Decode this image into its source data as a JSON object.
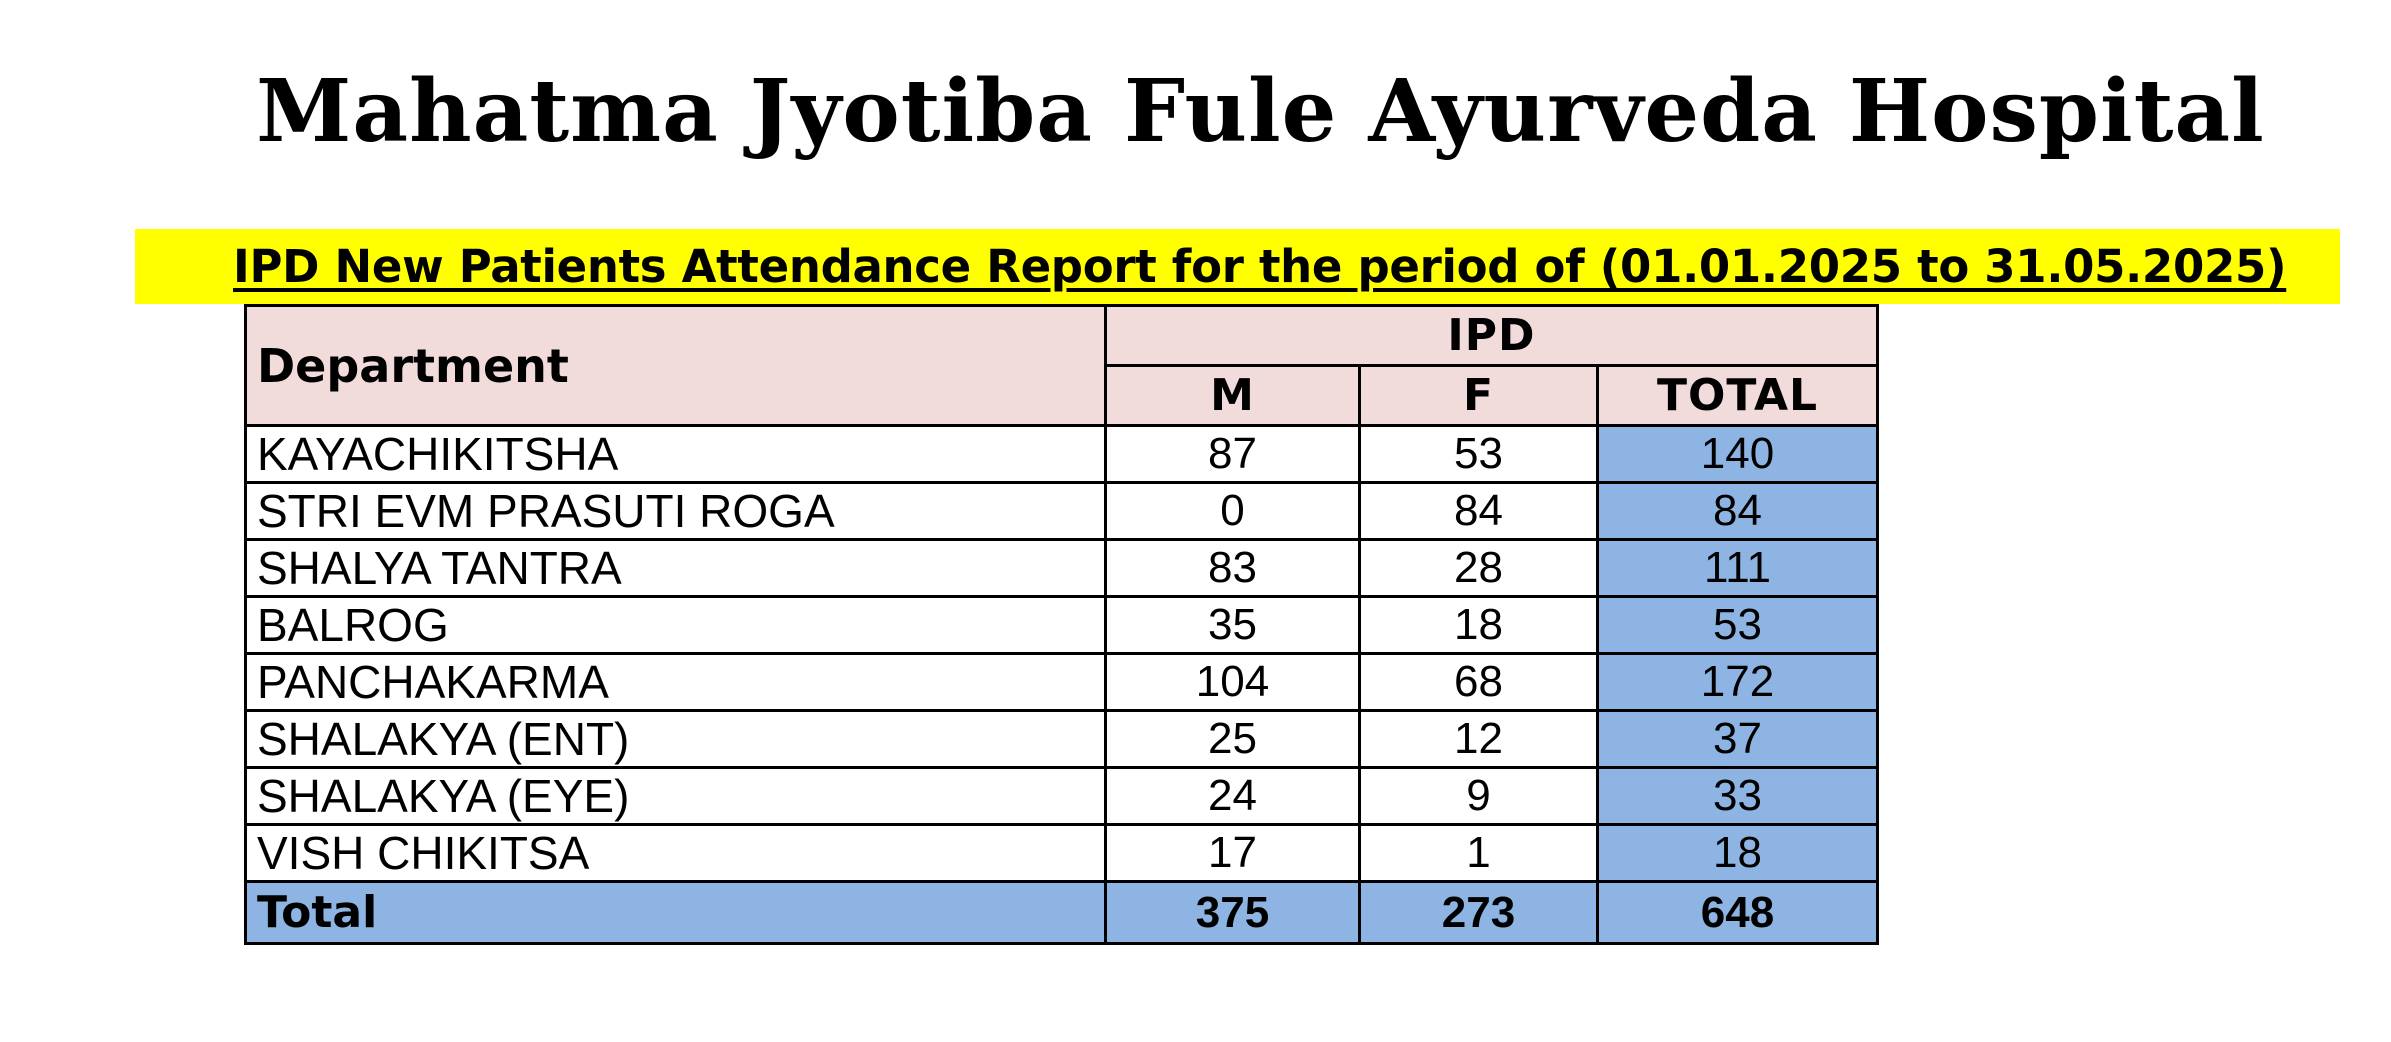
{
  "title": "Mahatma Jyotiba Fule Ayurveda Hospital",
  "subtitle": "IPD New Patients Attendance Report for the period of  (01.01.2025 to 31.05.2025)",
  "table": {
    "department_header": "Department",
    "group_header": "IPD",
    "columns": [
      "M",
      "F",
      "TOTAL"
    ],
    "rows": [
      {
        "department": "KAYACHIKITSHA",
        "m": "87",
        "f": "53",
        "total": "140"
      },
      {
        "department": "STRI EVM PRASUTI ROGA",
        "m": "0",
        "f": "84",
        "total": "84"
      },
      {
        "department": "SHALYA TANTRA",
        "m": "83",
        "f": "28",
        "total": "111"
      },
      {
        "department": "BALROG",
        "m": "35",
        "f": "18",
        "total": "53"
      },
      {
        "department": "PANCHAKARMA",
        "m": "104",
        "f": "68",
        "total": "172"
      },
      {
        "department": "SHALAKYA (ENT)",
        "m": "25",
        "f": "12",
        "total": "37"
      },
      {
        "department": "SHALAKYA (EYE)",
        "m": "24",
        "f": "9",
        "total": "33"
      },
      {
        "department": "VISH CHIKITSA",
        "m": "17",
        "f": "1",
        "total": "18"
      }
    ],
    "total_row": {
      "label": "Total",
      "m": "375",
      "f": "273",
      "total": "648"
    }
  },
  "colors": {
    "highlight_band": "#ffff00",
    "header_fill": "#f2dcdb",
    "total_fill": "#8db4e2"
  }
}
